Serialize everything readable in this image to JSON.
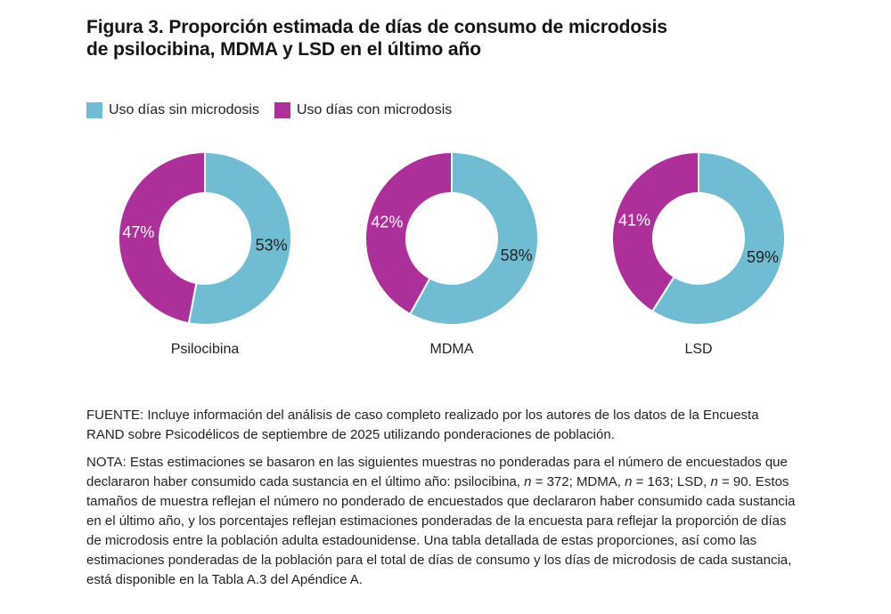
{
  "header": {
    "figure_label": "Figura 3.",
    "title_rest_line1": "Proporción estimada de días de consumo de microdosis",
    "title_line2": "de psilocibina, MDMA y LSD en el último año"
  },
  "legend": {
    "items": [
      {
        "label": "Uso días sin microdosis",
        "color": "#6FBCD3"
      },
      {
        "label": "Uso días con microdosis",
        "color": "#AD2F9A"
      }
    ]
  },
  "chart_data": {
    "type": "pie",
    "variant": "donut",
    "unit": "percent",
    "legend_position": "top-left",
    "series_keys": [
      "sin-microdosis",
      "con-microdosis"
    ],
    "series_labels": [
      "Uso días sin microdosis",
      "Uso días con microdosis"
    ],
    "colors": [
      "#6FBCD3",
      "#AD2F9A"
    ],
    "value_label_colors": [
      "#231F20",
      "#FFFFFF"
    ],
    "charts": [
      {
        "label": "Psilocibina",
        "values": [
          53,
          47
        ],
        "value_labels": [
          "53%",
          "47%"
        ]
      },
      {
        "label": "MDMA",
        "values": [
          58,
          42
        ],
        "value_labels": [
          "58%",
          "42%"
        ]
      },
      {
        "label": "LSD",
        "values": [
          59,
          41
        ],
        "value_labels": [
          "59%",
          "41%"
        ]
      }
    ]
  },
  "notes": {
    "fuente": "FUENTE: Incluye información del análisis de caso completo realizado por los autores de los datos de la Encuesta RAND sobre Psicodélicos de septiembre de 2025 utilizando ponderaciones de población.",
    "nota_segments": [
      {
        "text": "NOTA: Estas estimaciones se basaron en las siguientes muestras no ponderadas para el número de encuestados que declararon haber consumido cada sustancia en el último año: psilocibina, ",
        "italic": false
      },
      {
        "text": "n",
        "italic": true
      },
      {
        "text": " = 372; MDMA, ",
        "italic": false
      },
      {
        "text": "n",
        "italic": true
      },
      {
        "text": " = 163; LSD, ",
        "italic": false
      },
      {
        "text": "n",
        "italic": true
      },
      {
        "text": " = 90. Estos tamaños de muestra reflejan el número no ponderado de encuestados que declararon haber consumido cada sustancia en el último año, y los porcentajes reflejan estimaciones ponderadas de la encuesta para reflejar la proporción de días de microdosis entre la población adulta estadounidense. Una tabla detallada de estas proporciones, así como las estimaciones ponderadas de la población para el total de días de consumo y los días de microdosis de cada sustancia, está disponible en la Tabla A.3 del Apéndice A.",
        "italic": false
      }
    ]
  }
}
